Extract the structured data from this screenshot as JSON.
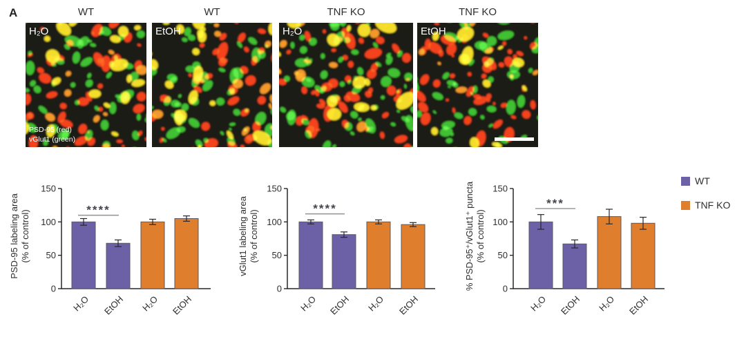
{
  "figure_label": "A",
  "micrograph_section": {
    "panels": [
      {
        "title": "WT",
        "treatment": "H₂O",
        "footnote_lines": [
          "PSD-95 (red)",
          "vGlut1 (green)"
        ],
        "scale_bar": false
      },
      {
        "title": "WT",
        "treatment": "EtOH",
        "footnote_lines": [],
        "scale_bar": false
      },
      {
        "title": "TNF KO",
        "treatment": "H₂O",
        "footnote_lines": [],
        "scale_bar": false
      },
      {
        "title": "TNF KO",
        "treatment": "EtOH",
        "footnote_lines": [],
        "scale_bar": true
      }
    ],
    "stain_colors": {
      "psd95_red": "#ff2e05",
      "vglut1_green": "#2bc31e",
      "overlap_yellow": "#ffe515",
      "background": "#1c1b17"
    }
  },
  "legend": {
    "items": [
      {
        "label": "WT",
        "color": "#6c60a6"
      },
      {
        "label": "TNF KO",
        "color": "#df7f2d"
      }
    ]
  },
  "chart_data": [
    {
      "type": "bar",
      "ylabel": "PSD-95 labeling area",
      "ylabel_line2": "(% of control)",
      "categories": [
        "H₂O",
        "EtOH",
        "H₂O",
        "EtOH"
      ],
      "values": [
        100,
        68,
        100,
        105
      ],
      "errors": [
        5,
        5,
        4,
        4
      ],
      "bar_colors": [
        "#6c60a6",
        "#6c60a6",
        "#df7f2d",
        "#df7f2d"
      ],
      "ylim": [
        0,
        150
      ],
      "yticks": [
        0,
        50,
        100,
        150
      ],
      "grid": false,
      "significance": {
        "label": "****",
        "from": 0,
        "to": 1,
        "y": 110
      }
    },
    {
      "type": "bar",
      "ylabel": "vGlut1 labeling area",
      "ylabel_line2": "(% of control)",
      "categories": [
        "H₂O",
        "EtOH",
        "H₂O",
        "EtOH"
      ],
      "values": [
        100,
        81,
        100,
        96
      ],
      "errors": [
        3,
        4,
        3,
        3
      ],
      "bar_colors": [
        "#6c60a6",
        "#6c60a6",
        "#df7f2d",
        "#df7f2d"
      ],
      "ylim": [
        0,
        150
      ],
      "yticks": [
        0,
        50,
        100,
        150
      ],
      "grid": false,
      "significance": {
        "label": "****",
        "from": 0,
        "to": 1,
        "y": 112
      }
    },
    {
      "type": "bar",
      "ylabel": "% PSD-95⁺/vGlut1⁺ puncta",
      "ylabel_line2": "(% of control)",
      "categories": [
        "H₂O",
        "EtOH",
        "H₂O",
        "EtOH"
      ],
      "values": [
        100,
        67,
        108,
        98
      ],
      "errors": [
        11,
        6,
        11,
        9
      ],
      "bar_colors": [
        "#6c60a6",
        "#6c60a6",
        "#df7f2d",
        "#df7f2d"
      ],
      "ylim": [
        0,
        150
      ],
      "yticks": [
        0,
        50,
        100,
        150
      ],
      "grid": false,
      "significance": {
        "label": "***",
        "from": 0,
        "to": 1,
        "y": 120
      }
    }
  ]
}
